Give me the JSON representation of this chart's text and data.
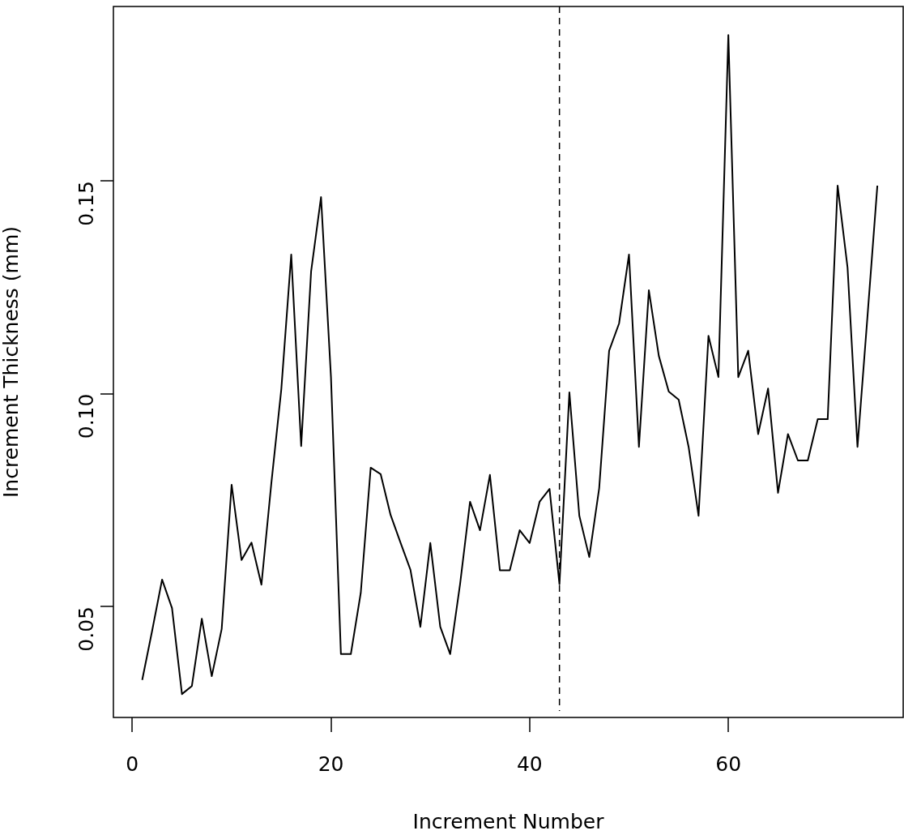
{
  "chart_data": {
    "type": "line",
    "xlabel": "Increment Number",
    "ylabel": "Increment Thickness (mm)",
    "x": [
      1,
      2,
      3,
      4,
      5,
      6,
      7,
      8,
      9,
      10,
      11,
      12,
      13,
      14,
      15,
      16,
      17,
      18,
      19,
      20,
      21,
      22,
      23,
      24,
      25,
      26,
      27,
      28,
      29,
      30,
      31,
      32,
      33,
      34,
      35,
      36,
      37,
      38,
      39,
      40,
      41,
      42,
      43,
      44,
      45,
      46,
      47,
      48,
      49,
      50,
      51,
      52,
      53,
      54,
      55,
      56,
      57,
      58,
      59,
      60,
      61,
      62,
      63,
      64,
      65,
      66,
      67,
      68,
      69,
      70,
      71,
      72,
      73,
      74,
      75
    ],
    "series": [
      {
        "color": "#000000",
        "values": [
          0.0327,
          0.0443,
          0.0563,
          0.0496,
          0.0294,
          0.0313,
          0.0471,
          0.0336,
          0.0447,
          0.0786,
          0.0609,
          0.065,
          0.0551,
          0.079,
          0.101,
          0.1327,
          0.0877,
          0.1287,
          0.1462,
          0.1039,
          0.0388,
          0.0388,
          0.0532,
          0.0826,
          0.0811,
          0.0715,
          0.065,
          0.0586,
          0.0452,
          0.0649,
          0.0452,
          0.0388,
          0.0553,
          0.0746,
          0.0679,
          0.0809,
          0.0585,
          0.0585,
          0.0679,
          0.0649,
          0.0746,
          0.0776,
          0.0552,
          0.1003,
          0.0713,
          0.0616,
          0.0778,
          0.1101,
          0.1165,
          0.1327,
          0.0875,
          0.1243,
          0.1089,
          0.1005,
          0.0986,
          0.0875,
          0.0713,
          0.1136,
          0.1039,
          0.1843,
          0.1039,
          0.1101,
          0.0905,
          0.1012,
          0.0767,
          0.0905,
          0.0843,
          0.0843,
          0.094,
          0.094,
          0.1489,
          0.1296,
          0.0875,
          0.118,
          0.1489
        ]
      }
    ],
    "xlim": [
      -1.9,
      77.6
    ],
    "xticks": [
      0,
      20,
      40,
      60
    ],
    "ylim": [
      0.0239,
      0.191
    ],
    "yticks": [
      {
        "value": 0.05,
        "label": "0.05"
      },
      {
        "value": 0.1,
        "label": "0.10"
      },
      {
        "value": 0.15,
        "label": "0.15"
      }
    ],
    "ref_lines": [
      {
        "axis": "x",
        "value": 43,
        "line_style": "dashed",
        "color": "#000000"
      }
    ],
    "grid": false,
    "legend": false,
    "marker": "none",
    "line_style": "solid"
  }
}
